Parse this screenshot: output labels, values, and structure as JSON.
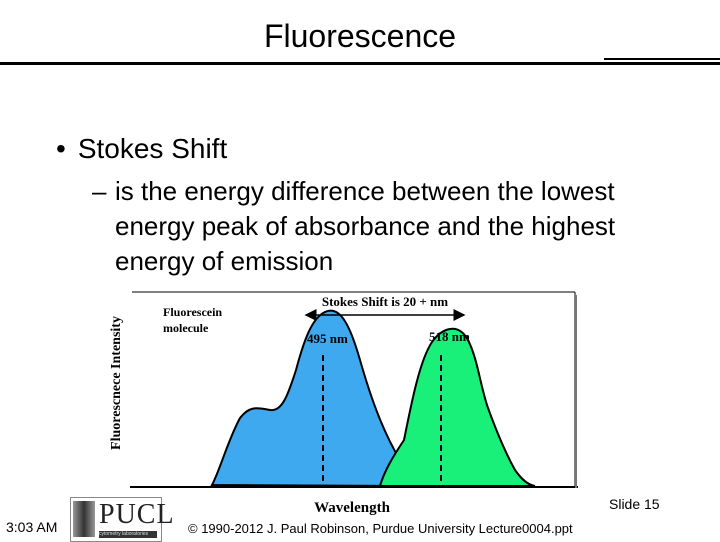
{
  "slide": {
    "title": "Fluorescence",
    "bullet": "Stokes Shift",
    "sub_bullet": "is the energy difference between the lowest energy peak of absorbance and the highest energy of emission"
  },
  "figure": {
    "y_axis_label": "Fluorescnece Intensity",
    "x_axis_label": "Wavelength",
    "molecule_label_1": "Fluorescein",
    "molecule_label_2": "molecule",
    "stokes_label": "Stokes Shift is 20 + nm",
    "peak_absorbance": "495 nm",
    "peak_emission": "518 nm",
    "absorbance_color": "#3fa9ef",
    "emission_color": "#19f07a"
  },
  "footer": {
    "time": "3:03 AM",
    "slide_number": "Slide 15",
    "copyright": "© 1990-2012 J. Paul Robinson, Purdue University Lecture0004.ppt",
    "logo_text": "PUCL",
    "logo_tagline": "cytometry laboratories"
  }
}
